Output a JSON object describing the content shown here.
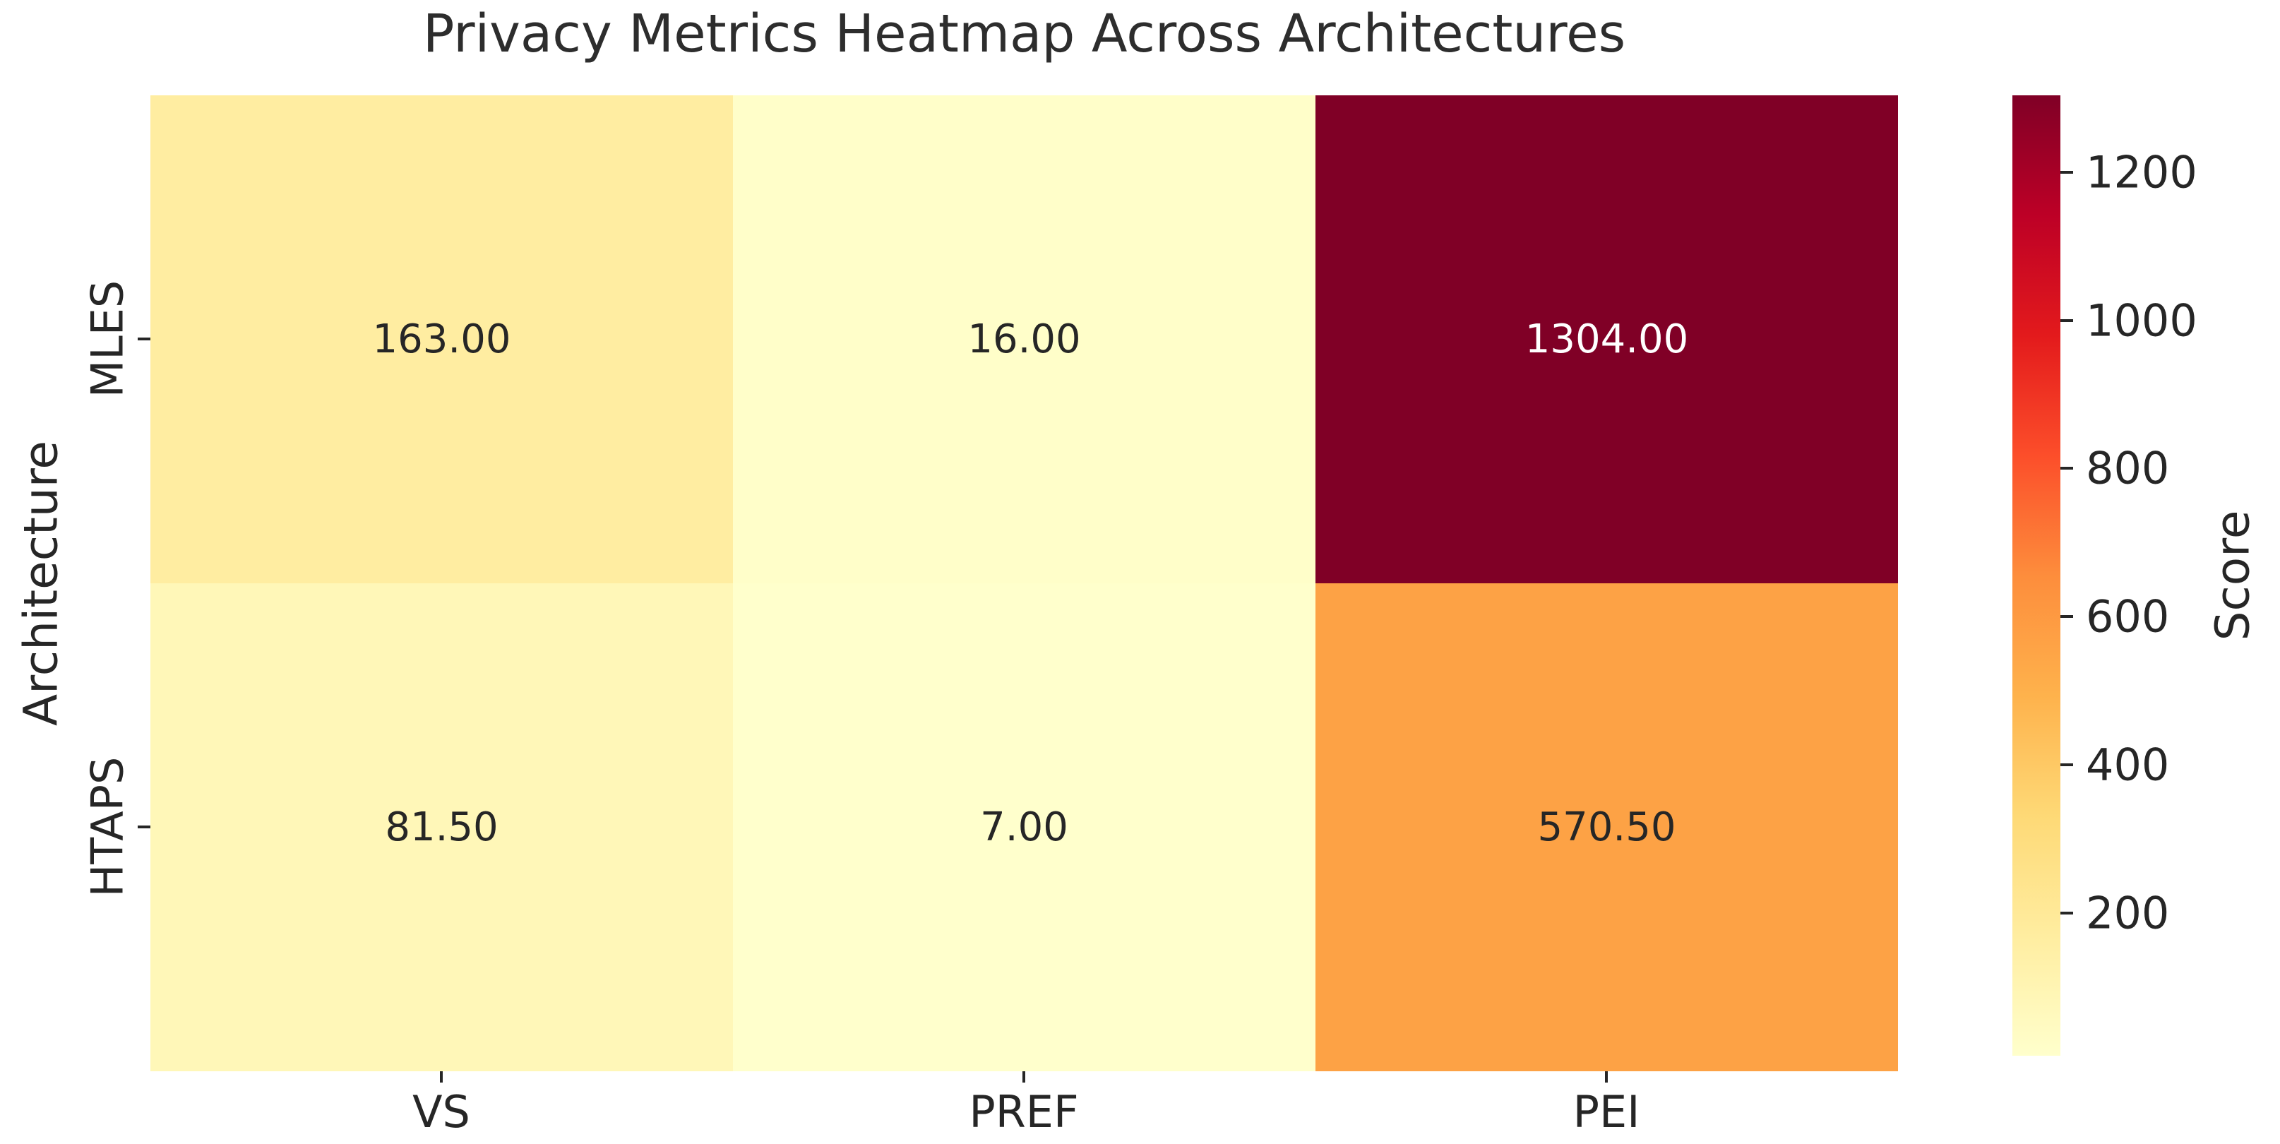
{
  "figure": {
    "background": "#ffffff",
    "text_color": "#262626"
  },
  "chart_data": {
    "type": "heatmap",
    "title": "Privacy Metrics Heatmap Across Architectures",
    "xlabel": "",
    "ylabel": "Architecture",
    "columns": [
      "VS",
      "PREF",
      "PEI"
    ],
    "rows": [
      "MLES",
      "HTAPS"
    ],
    "values": [
      [
        163.0,
        16.0,
        1304.0
      ],
      [
        81.5,
        7.0,
        570.5
      ]
    ],
    "cell_labels": [
      [
        "163.00",
        "16.00",
        "1304.00"
      ],
      [
        "81.50",
        "7.00",
        "570.50"
      ]
    ],
    "colormap": "YlOrRd",
    "vmin": 7.0,
    "vmax": 1304.0,
    "grid": false,
    "colorbar": {
      "label": "Score",
      "position": "right",
      "ticks": [
        "200",
        "400",
        "600",
        "800",
        "1000",
        "1200"
      ]
    },
    "cell_colors": [
      [
        "#ffeda1",
        "#fffec9",
        "#800026"
      ],
      [
        "#fff7b8",
        "#ffffcc",
        "#fda245"
      ]
    ],
    "cell_text_colors": [
      [
        "#262626",
        "#262626",
        "#ffffff"
      ],
      [
        "#262626",
        "#262626",
        "#262626"
      ]
    ]
  }
}
